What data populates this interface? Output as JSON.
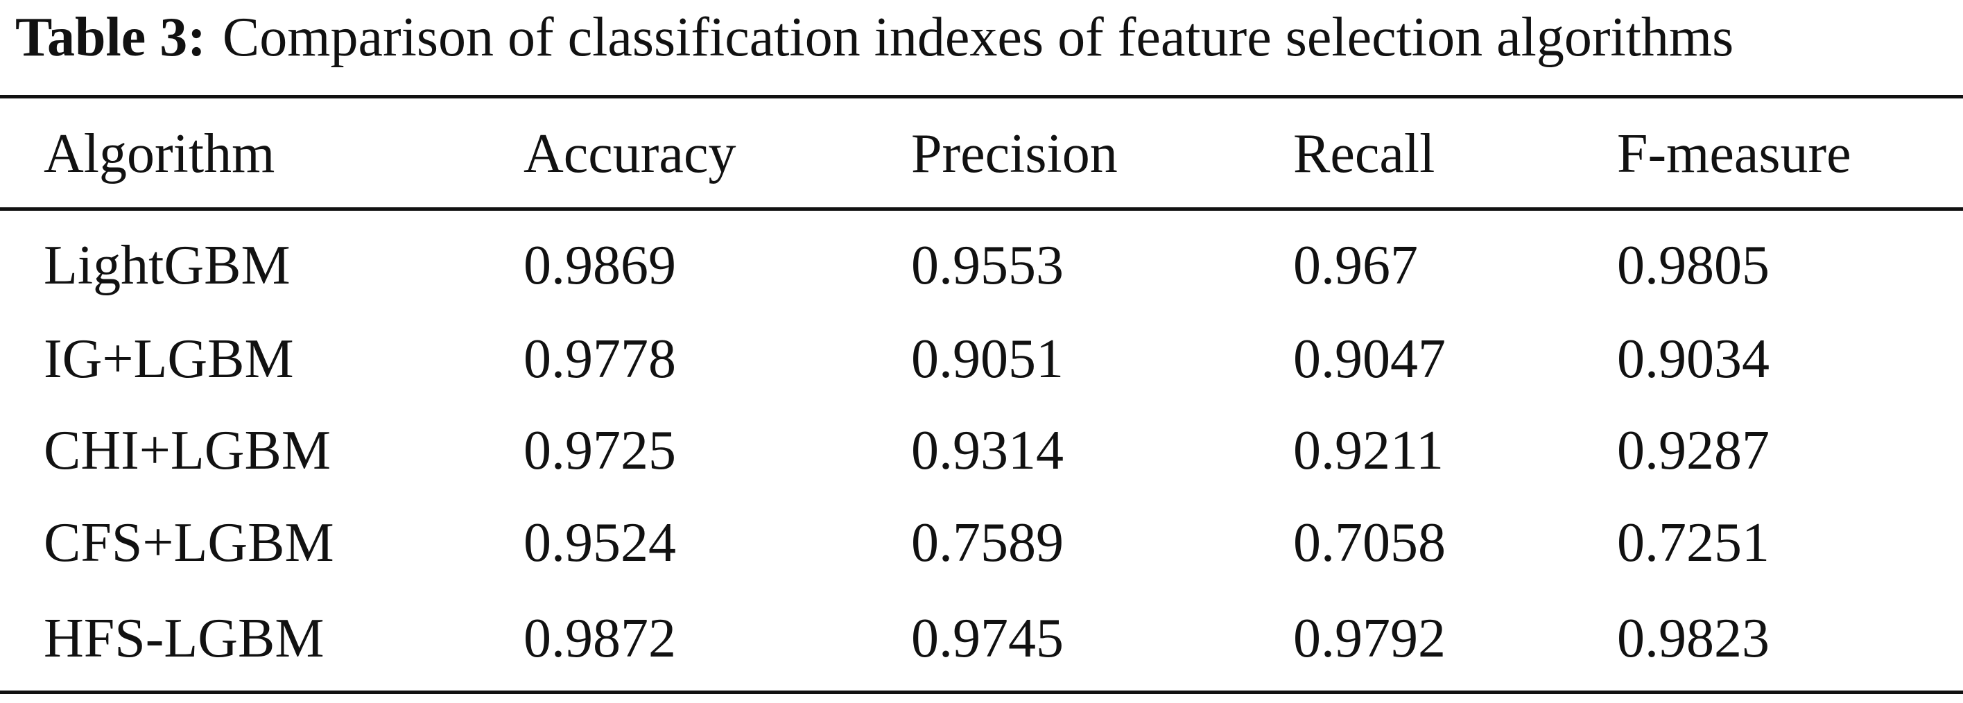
{
  "header": {
    "label": "Table 3:",
    "title": "Comparison of classification indexes of feature selection algorithms"
  },
  "table": {
    "columns": [
      "Algorithm",
      "Accuracy",
      "Precision",
      "Recall",
      "F-measure"
    ],
    "rows": [
      [
        "LightGBM",
        "0.9869",
        "0.9553",
        "0.967",
        "0.9805"
      ],
      [
        "IG+LGBM",
        "0.9778",
        "0.9051",
        "0.9047",
        "0.9034"
      ],
      [
        "CHI+LGBM",
        "0.9725",
        "0.9314",
        "0.9211",
        "0.9287"
      ],
      [
        "CFS+LGBM",
        "0.9524",
        "0.7589",
        "0.7058",
        "0.7251"
      ],
      [
        "HFS-LGBM",
        "0.9872",
        "0.9745",
        "0.9792",
        "0.9823"
      ]
    ]
  }
}
